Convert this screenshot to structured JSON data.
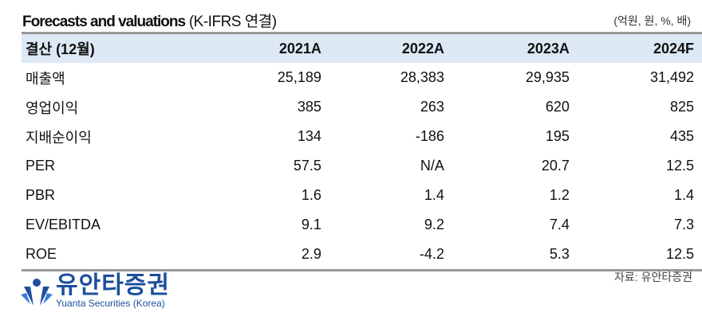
{
  "header": {
    "title_bold": "Forecasts and valuations",
    "title_rest": " (K-IFRS 연결)",
    "unit": "(억원, 원, %, 배)"
  },
  "table": {
    "columns": [
      "결산 (12월)",
      "2021A",
      "2022A",
      "2023A",
      "2024F"
    ],
    "rows": [
      {
        "label": "매출액",
        "values": [
          "25,189",
          "28,383",
          "29,935",
          "31,492"
        ]
      },
      {
        "label": "영업이익",
        "values": [
          "385",
          "263",
          "620",
          "825"
        ]
      },
      {
        "label": "지배순이익",
        "values": [
          "134",
          "-186",
          "195",
          "435"
        ]
      },
      {
        "label": "PER",
        "values": [
          "57.5",
          "N/A",
          "20.7",
          "12.5"
        ]
      },
      {
        "label": "PBR",
        "values": [
          "1.6",
          "1.4",
          "1.2",
          "1.4"
        ]
      },
      {
        "label": "EV/EBITDA",
        "values": [
          "9.1",
          "9.2",
          "7.4",
          "7.3"
        ]
      },
      {
        "label": "ROE",
        "values": [
          "2.9",
          "-4.2",
          "5.3",
          "12.5"
        ]
      }
    ]
  },
  "footer": {
    "source": "자료: 유안타증권",
    "logo_ko": "유안타증권",
    "logo_en": "Yuanta Securities (Korea)",
    "brand_color": "#1c4f9c"
  }
}
